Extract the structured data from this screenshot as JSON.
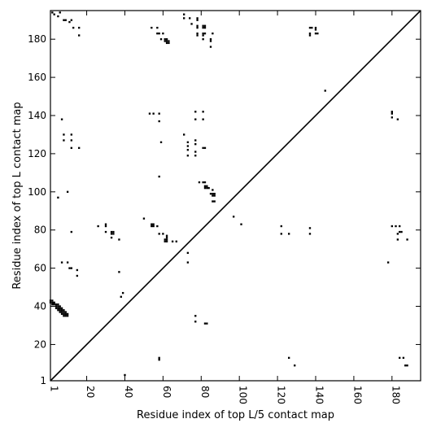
{
  "chart_data": {
    "type": "heatmap",
    "xlabel": "Residue index of top L/5 contact map",
    "ylabel": "Residue index of top L contact map",
    "xlim": [
      1,
      195
    ],
    "ylim": [
      1,
      195
    ],
    "xticks": [
      1,
      20,
      40,
      60,
      80,
      100,
      120,
      140,
      160,
      180
    ],
    "yticks": [
      1,
      20,
      40,
      60,
      80,
      100,
      120,
      140,
      160,
      180
    ],
    "diagonal_line": true,
    "upper_triangle_contacts": [
      [
        2,
        194
      ],
      [
        3,
        193
      ],
      [
        5,
        192
      ],
      [
        6,
        194
      ],
      [
        8,
        190
      ],
      [
        9,
        190
      ],
      [
        11,
        189
      ],
      [
        12,
        190
      ],
      [
        13,
        186
      ],
      [
        16,
        186
      ],
      [
        16,
        182
      ],
      [
        7,
        138
      ],
      [
        8,
        130
      ],
      [
        8,
        127
      ],
      [
        12,
        130
      ],
      [
        12,
        127
      ],
      [
        12,
        123
      ],
      [
        16,
        123
      ],
      [
        7,
        63
      ],
      [
        10,
        63
      ],
      [
        11,
        60
      ],
      [
        12,
        60
      ],
      [
        15,
        59
      ],
      [
        15,
        56
      ],
      [
        1,
        43
      ],
      [
        2,
        43
      ],
      [
        1,
        42
      ],
      [
        2,
        42
      ],
      [
        3,
        42
      ],
      [
        2,
        41
      ],
      [
        3,
        41
      ],
      [
        4,
        41
      ],
      [
        5,
        41
      ],
      [
        4,
        40
      ],
      [
        5,
        40
      ],
      [
        6,
        40
      ],
      [
        4,
        39
      ],
      [
        5,
        39
      ],
      [
        6,
        39
      ],
      [
        7,
        39
      ],
      [
        5,
        38
      ],
      [
        6,
        38
      ],
      [
        7,
        38
      ],
      [
        8,
        38
      ],
      [
        6,
        37
      ],
      [
        7,
        37
      ],
      [
        8,
        37
      ],
      [
        9,
        37
      ],
      [
        7,
        36
      ],
      [
        8,
        36
      ],
      [
        9,
        36
      ],
      [
        10,
        36
      ],
      [
        8,
        35
      ],
      [
        9,
        35
      ],
      [
        10,
        35
      ],
      [
        5,
        97
      ],
      [
        10,
        100
      ],
      [
        12,
        79
      ],
      [
        26,
        82
      ],
      [
        30,
        83
      ],
      [
        30,
        82
      ],
      [
        30,
        79
      ],
      [
        33,
        79
      ],
      [
        34,
        79
      ],
      [
        33,
        78
      ],
      [
        34,
        78
      ],
      [
        33,
        76
      ],
      [
        37,
        75
      ],
      [
        37,
        58
      ],
      [
        38,
        45
      ],
      [
        39,
        47
      ],
      [
        50,
        86
      ],
      [
        54,
        83
      ],
      [
        55,
        83
      ],
      [
        54,
        82
      ],
      [
        55,
        82
      ],
      [
        57,
        82
      ],
      [
        58,
        78
      ],
      [
        60,
        78
      ],
      [
        62,
        77
      ],
      [
        62,
        76
      ],
      [
        61,
        75
      ],
      [
        62,
        75
      ],
      [
        61,
        74
      ],
      [
        62,
        74
      ],
      [
        65,
        74
      ],
      [
        67,
        74
      ],
      [
        73,
        68
      ],
      [
        73,
        63
      ],
      [
        54,
        186
      ],
      [
        57,
        186
      ],
      [
        57,
        183
      ],
      [
        58,
        183
      ],
      [
        60,
        183
      ],
      [
        59,
        180
      ],
      [
        61,
        180
      ],
      [
        62,
        180
      ],
      [
        61,
        179
      ],
      [
        62,
        179
      ],
      [
        63,
        179
      ],
      [
        62,
        178
      ],
      [
        63,
        178
      ],
      [
        53,
        141
      ],
      [
        55,
        141
      ],
      [
        58,
        141
      ],
      [
        58,
        137
      ],
      [
        59,
        126
      ],
      [
        58,
        108
      ],
      [
        71,
        193
      ],
      [
        71,
        191
      ],
      [
        74,
        191
      ],
      [
        78,
        191
      ],
      [
        78,
        190
      ],
      [
        75,
        188
      ],
      [
        78,
        187
      ],
      [
        78,
        186
      ],
      [
        81,
        187
      ],
      [
        82,
        187
      ],
      [
        81,
        186
      ],
      [
        82,
        186
      ],
      [
        78,
        183
      ],
      [
        78,
        182
      ],
      [
        81,
        183
      ],
      [
        82,
        183
      ],
      [
        86,
        183
      ],
      [
        81,
        182
      ],
      [
        81,
        180
      ],
      [
        85,
        180
      ],
      [
        85,
        179
      ],
      [
        85,
        176
      ],
      [
        71,
        130
      ],
      [
        73,
        126
      ],
      [
        73,
        124
      ],
      [
        77,
        127
      ],
      [
        77,
        125
      ],
      [
        73,
        122
      ],
      [
        77,
        121
      ],
      [
        73,
        119
      ],
      [
        77,
        119
      ],
      [
        81,
        123
      ],
      [
        82,
        123
      ],
      [
        77,
        142
      ],
      [
        81,
        142
      ],
      [
        77,
        138
      ],
      [
        81,
        138
      ],
      [
        79,
        105
      ],
      [
        81,
        105
      ],
      [
        82,
        105
      ],
      [
        82,
        103
      ],
      [
        83,
        103
      ],
      [
        82,
        102
      ],
      [
        83,
        102
      ],
      [
        84,
        102
      ],
      [
        86,
        101
      ],
      [
        85,
        99
      ],
      [
        86,
        99
      ],
      [
        87,
        99
      ],
      [
        86,
        98
      ],
      [
        87,
        98
      ],
      [
        86,
        95
      ],
      [
        87,
        95
      ],
      [
        97,
        87
      ],
      [
        101,
        83
      ],
      [
        122,
        82
      ],
      [
        122,
        78
      ],
      [
        126,
        78
      ],
      [
        137,
        186
      ],
      [
        138,
        186
      ],
      [
        137,
        183
      ],
      [
        137,
        182
      ],
      [
        140,
        186
      ],
      [
        140,
        185
      ],
      [
        140,
        183
      ],
      [
        141,
        183
      ],
      [
        137,
        81
      ],
      [
        137,
        78
      ],
      [
        145,
        153
      ],
      [
        180,
        142
      ],
      [
        180,
        141
      ],
      [
        180,
        139
      ],
      [
        183,
        138
      ],
      [
        178,
        63
      ],
      [
        180,
        82
      ],
      [
        182,
        82
      ],
      [
        184,
        82
      ],
      [
        184,
        79
      ],
      [
        185,
        79
      ],
      [
        183,
        78
      ],
      [
        183,
        75
      ],
      [
        188,
        75
      ]
    ],
    "lower_triangle_contacts": [
      [
        77,
        35
      ],
      [
        77,
        32
      ],
      [
        82,
        31
      ],
      [
        83,
        31
      ],
      [
        58,
        13
      ],
      [
        58,
        12
      ],
      [
        40,
        4
      ],
      [
        126,
        13
      ],
      [
        129,
        9
      ],
      [
        184,
        13
      ],
      [
        186,
        13
      ],
      [
        187,
        9
      ],
      [
        188,
        9
      ]
    ]
  }
}
